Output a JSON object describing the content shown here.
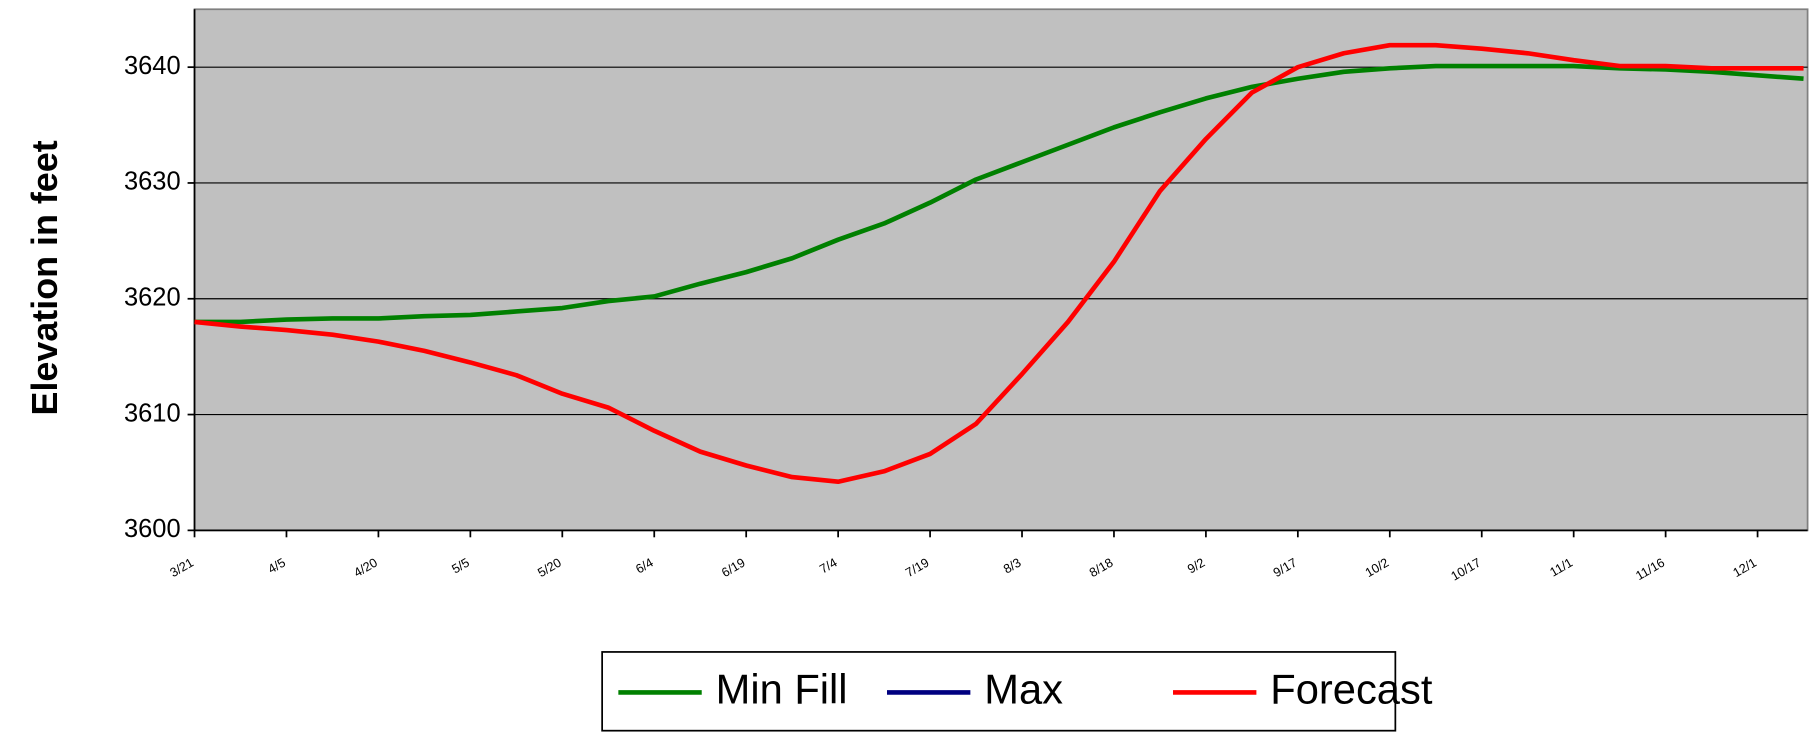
{
  "chart_data": {
    "type": "line",
    "y_label": "Elevation in feet",
    "categories": [
      "3/21",
      null,
      "4/5",
      null,
      "4/20",
      null,
      "5/5",
      null,
      "5/20",
      null,
      "6/4",
      null,
      "6/19",
      null,
      "7/4",
      null,
      "7/19",
      null,
      "8/3",
      null,
      "8/18",
      null,
      "9/2",
      null,
      "9/17",
      null,
      "10/2",
      null,
      "10/17",
      null,
      "11/1",
      null,
      "11/16",
      null,
      "12/1",
      null
    ],
    "series": [
      {
        "name": "Min Fill",
        "color": "#008000",
        "values": [
          3618.0,
          3618.0,
          3618.2,
          3618.3,
          3618.3,
          3618.5,
          3618.6,
          3618.9,
          3619.2,
          3619.8,
          3620.2,
          3621.3,
          3622.3,
          3623.5,
          3625.1,
          3626.5,
          3628.3,
          3630.3,
          3631.8,
          3633.3,
          3634.8,
          3636.1,
          3637.3,
          3638.3,
          3639.0,
          3639.6,
          3639.9,
          3640.1,
          3640.1,
          3640.1,
          3640.1,
          3639.9,
          3639.8,
          3639.6,
          3639.3,
          3639.0
        ]
      },
      {
        "name": "Max",
        "color": "#000080",
        "values": [
          null,
          null,
          null,
          null,
          null,
          null,
          null,
          null,
          null,
          null,
          null,
          null,
          null,
          null,
          null,
          null,
          null,
          null,
          null,
          null,
          null,
          null,
          null,
          null,
          null,
          null,
          null,
          null,
          null,
          null,
          null,
          null,
          null,
          null,
          null,
          null
        ]
      },
      {
        "name": "Forecast",
        "color": "#ff0000",
        "values": [
          3618.0,
          3617.6,
          3617.3,
          3616.9,
          3616.3,
          3615.5,
          3614.5,
          3613.4,
          3611.8,
          3610.6,
          3608.6,
          3606.8,
          3605.6,
          3604.6,
          3604.2,
          3605.1,
          3606.6,
          3609.2,
          3613.5,
          3618.0,
          3623.2,
          3629.3,
          3633.8,
          3637.8,
          3640.0,
          3641.2,
          3641.9,
          3641.9,
          3641.6,
          3641.2,
          3640.6,
          3640.1,
          3640.1,
          3639.9,
          3639.9,
          3639.9
        ]
      }
    ],
    "ylim": [
      3600,
      3645
    ],
    "yticks": [
      3600,
      3610,
      3620,
      3630,
      3640
    ],
    "grid": true,
    "legend": "bottom"
  }
}
